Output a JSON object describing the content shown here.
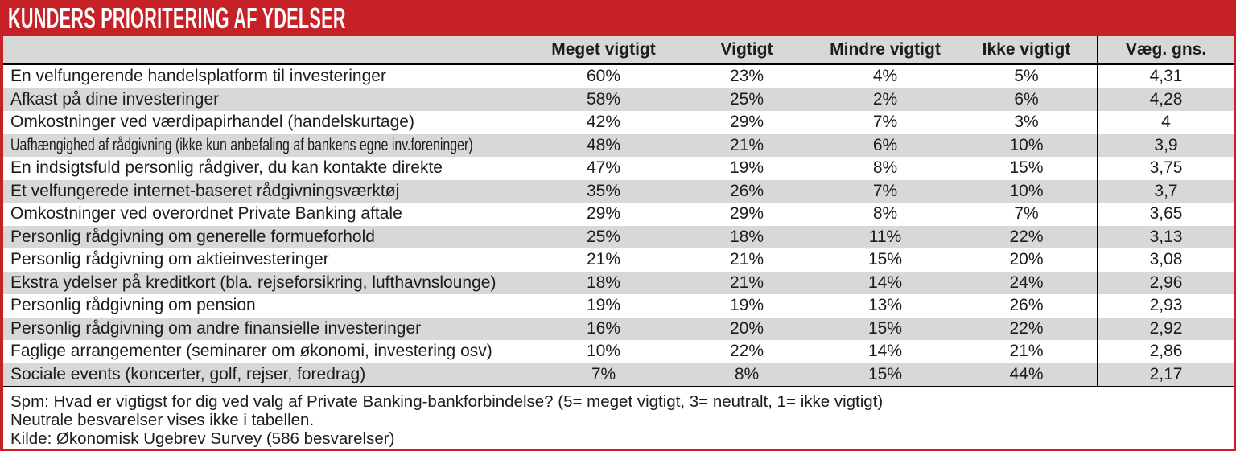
{
  "title": "KUNDERS PRIORITERING AF YDELSER",
  "colors": {
    "accent_red": "#c62127",
    "row_stripe_gray": "#d8d8d8",
    "header_bg": "#d8d8d8",
    "text": "#1c1c1c",
    "title_text": "#ffffff"
  },
  "chart_data": {
    "type": "table",
    "title": "KUNDERS PRIORITERING AF YDELSER",
    "columns": [
      "Meget vigtigt",
      "Vigtigt",
      "Mindre vigtigt",
      "Ikke vigtigt",
      "Væg. gns."
    ],
    "rows": [
      {
        "label": "En velfungerende handelsplatform til investeringer",
        "values": [
          "60%",
          "23%",
          "4%",
          "5%",
          "4,31"
        ]
      },
      {
        "label": "Afkast på dine investeringer",
        "values": [
          "58%",
          "25%",
          "2%",
          "6%",
          "4,28"
        ]
      },
      {
        "label": "Omkostninger ved værdipapirhandel (handelskurtage)",
        "values": [
          "42%",
          "29%",
          "7%",
          "3%",
          "4"
        ]
      },
      {
        "label": "Uafhængighed af rådgivning (ikke kun anbefaling af bankens egne inv.foreninger)",
        "values": [
          "48%",
          "21%",
          "6%",
          "10%",
          "3,9"
        ],
        "condensed": true
      },
      {
        "label": "En indsigtsfuld personlig rådgiver, du kan kontakte direkte",
        "values": [
          "47%",
          "19%",
          "8%",
          "15%",
          "3,75"
        ]
      },
      {
        "label": "Et velfungerede internet-baseret rådgivningsværktøj",
        "values": [
          "35%",
          "26%",
          "7%",
          "10%",
          "3,7"
        ]
      },
      {
        "label": "Omkostninger ved overordnet Private Banking aftale",
        "values": [
          "29%",
          "29%",
          "8%",
          "7%",
          "3,65"
        ]
      },
      {
        "label": "Personlig rådgivning om generelle formueforhold",
        "values": [
          "25%",
          "18%",
          "11%",
          "22%",
          "3,13"
        ]
      },
      {
        "label": "Personlig rådgivning om aktieinvesteringer",
        "values": [
          "21%",
          "21%",
          "15%",
          "20%",
          "3,08"
        ]
      },
      {
        "label": "Ekstra ydelser på kreditkort (bla. rejseforsikring, lufthavnslounge)",
        "values": [
          "18%",
          "21%",
          "14%",
          "24%",
          "2,96"
        ]
      },
      {
        "label": "Personlig rådgivning om pension",
        "values": [
          "19%",
          "19%",
          "13%",
          "26%",
          "2,93"
        ]
      },
      {
        "label": "Personlig rådgivning om andre finansielle investeringer",
        "values": [
          "16%",
          "20%",
          "15%",
          "22%",
          "2,92"
        ]
      },
      {
        "label": "Faglige arrangementer (seminarer om økonomi, investering osv)",
        "values": [
          "10%",
          "22%",
          "14%",
          "21%",
          "2,86"
        ]
      },
      {
        "label": "Sociale events (koncerter, golf, rejser, foredrag)",
        "values": [
          "7%",
          "8%",
          "15%",
          "44%",
          "2,17"
        ]
      }
    ]
  },
  "footer": {
    "lines": [
      "Spm: Hvad er vigtigst for dig ved valg af Private Banking-bankforbindelse? (5= meget vigtigt, 3= neutralt, 1= ikke vigtigt)",
      "Neutrale besvarelser vises ikke i tabellen.",
      "Kilde: Økonomisk Ugebrev Survey (586 besvarelser)"
    ]
  }
}
